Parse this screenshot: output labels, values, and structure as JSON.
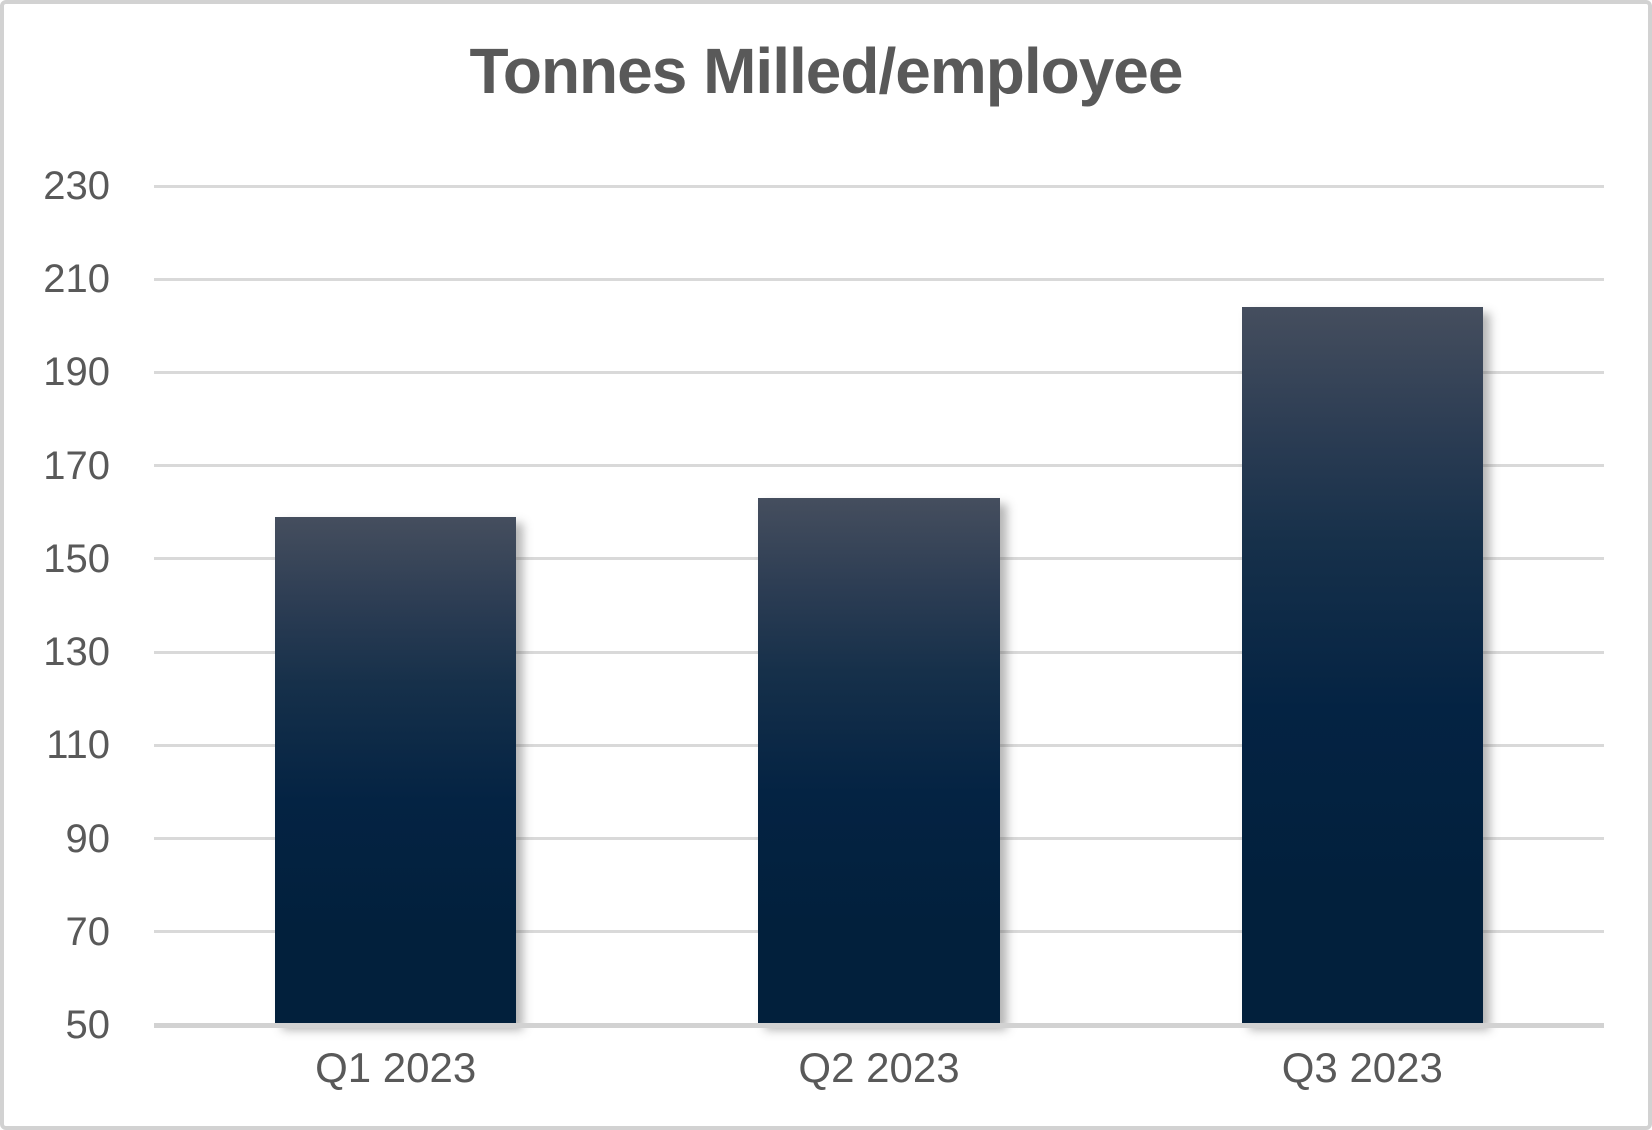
{
  "chart_data": {
    "type": "bar",
    "title": "Tonnes Milled/employee",
    "categories": [
      "Q1 2023",
      "Q2 2023",
      "Q3 2023"
    ],
    "values": [
      159,
      163,
      204
    ],
    "xlabel": "",
    "ylabel": "",
    "ylim": [
      50,
      230
    ],
    "ytick_step": 20,
    "yticks": [
      50,
      70,
      90,
      110,
      130,
      150,
      170,
      190,
      210,
      230
    ],
    "grid": "horizontal",
    "legend": "none",
    "bars_baseline_value": 50,
    "colors": {
      "bar_gradient_top": "#454e5e",
      "bar_gradient_upper_mid": "#2b3c53",
      "bar_gradient_mid": "#16304a",
      "bar_gradient_lower_mid": "#042343",
      "bar_gradient_bottom": "#02203c",
      "gridline": "#d9d9d9",
      "axis_line": "#d2d2d2",
      "text": "#595959",
      "background": "#ffffff",
      "frame_border": "#d2d2d2"
    }
  }
}
